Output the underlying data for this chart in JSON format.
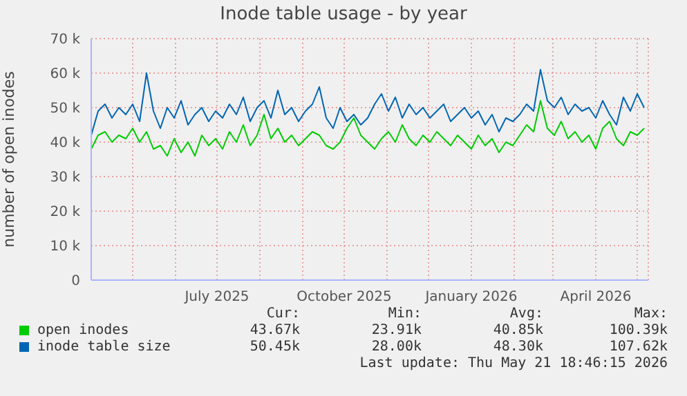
{
  "chart_data": {
    "type": "line",
    "title": "Inode table usage - by year",
    "ylabel": "number of open inodes",
    "x": [
      "2025-04-01",
      "2025-04-06",
      "2025-04-11",
      "2025-04-16",
      "2025-04-21",
      "2025-04-26",
      "2025-05-01",
      "2025-05-06",
      "2025-05-11",
      "2025-05-16",
      "2025-05-21",
      "2025-05-26",
      "2025-05-31",
      "2025-06-05",
      "2025-06-10",
      "2025-06-15",
      "2025-06-20",
      "2025-06-25",
      "2025-06-30",
      "2025-07-05",
      "2025-07-10",
      "2025-07-15",
      "2025-07-20",
      "2025-07-25",
      "2025-07-30",
      "2025-08-04",
      "2025-08-09",
      "2025-08-14",
      "2025-08-19",
      "2025-08-24",
      "2025-08-29",
      "2025-09-03",
      "2025-09-08",
      "2025-09-13",
      "2025-09-18",
      "2025-09-23",
      "2025-09-28",
      "2025-10-03",
      "2025-10-08",
      "2025-10-13",
      "2025-10-18",
      "2025-10-23",
      "2025-10-28",
      "2025-11-02",
      "2025-11-07",
      "2025-11-12",
      "2025-11-17",
      "2025-11-22",
      "2025-11-27",
      "2025-12-02",
      "2025-12-07",
      "2025-12-12",
      "2025-12-17",
      "2025-12-22",
      "2025-12-27",
      "2026-01-01",
      "2026-01-06",
      "2026-01-11",
      "2026-01-16",
      "2026-01-21",
      "2026-01-26",
      "2026-01-31",
      "2026-02-05",
      "2026-02-10",
      "2026-02-15",
      "2026-02-20",
      "2026-02-25",
      "2026-03-02",
      "2026-03-07",
      "2026-03-12",
      "2026-03-17",
      "2026-03-22",
      "2026-03-27",
      "2026-04-01",
      "2026-04-06",
      "2026-04-11",
      "2026-04-16",
      "2026-04-21",
      "2026-04-26",
      "2026-05-01",
      "2026-05-06"
    ],
    "series": [
      {
        "name": "open inodes",
        "color": "#00cc00",
        "values": [
          38000,
          42000,
          43000,
          40000,
          42000,
          41000,
          44000,
          40000,
          43000,
          38000,
          39000,
          36000,
          41000,
          37000,
          40000,
          36000,
          42000,
          39000,
          41000,
          38000,
          43000,
          40000,
          45000,
          39000,
          42000,
          48000,
          41000,
          44000,
          40000,
          42000,
          39000,
          41000,
          43000,
          42000,
          39000,
          38000,
          40000,
          44000,
          47000,
          42000,
          40000,
          38000,
          41000,
          43000,
          40000,
          45000,
          41000,
          39000,
          42000,
          40000,
          43000,
          41000,
          39000,
          42000,
          40000,
          38000,
          42000,
          39000,
          41000,
          37000,
          40000,
          39000,
          42000,
          45000,
          43000,
          52000,
          44000,
          42000,
          46000,
          41000,
          43000,
          40000,
          42000,
          38000,
          44000,
          46000,
          41000,
          39000,
          43000,
          42000,
          44000
        ]
      },
      {
        "name": "inode table size",
        "color": "#0066b3",
        "values": [
          42000,
          49000,
          51000,
          47000,
          50000,
          48000,
          51000,
          46000,
          60000,
          49000,
          44000,
          50000,
          47000,
          52000,
          45000,
          48000,
          50000,
          46000,
          49000,
          47000,
          51000,
          48000,
          53000,
          46000,
          50000,
          52000,
          47000,
          55000,
          48000,
          50000,
          46000,
          49000,
          51000,
          56000,
          47000,
          44000,
          50000,
          46000,
          48000,
          45000,
          47000,
          51000,
          54000,
          49000,
          53000,
          47000,
          51000,
          48000,
          50000,
          47000,
          49000,
          51000,
          46000,
          48000,
          50000,
          47000,
          49000,
          45000,
          48000,
          43000,
          47000,
          46000,
          48000,
          51000,
          49000,
          61000,
          52000,
          50000,
          53000,
          48000,
          51000,
          49000,
          50000,
          47000,
          52000,
          48000,
          45000,
          53000,
          49000,
          54000,
          50000
        ]
      }
    ],
    "xlim": [
      "2025-04-01",
      "2026-05-09"
    ],
    "xticks": [
      {
        "value": "2025-05-01",
        "label": null
      },
      {
        "value": "2025-06-01",
        "label": null
      },
      {
        "value": "2025-07-01",
        "label": "July 2025"
      },
      {
        "value": "2025-08-01",
        "label": null
      },
      {
        "value": "2025-09-01",
        "label": null
      },
      {
        "value": "2025-10-01",
        "label": "October 2025"
      },
      {
        "value": "2025-11-01",
        "label": null
      },
      {
        "value": "2025-12-01",
        "label": null
      },
      {
        "value": "2026-01-01",
        "label": "January 2026"
      },
      {
        "value": "2026-02-01",
        "label": null
      },
      {
        "value": "2026-03-01",
        "label": null
      },
      {
        "value": "2026-04-01",
        "label": "April 2026"
      },
      {
        "value": "2026-05-01",
        "label": null
      }
    ],
    "ylim": [
      0,
      70000
    ],
    "yticks": [
      0,
      {
        "value": 10000,
        "label": "10 k"
      },
      {
        "value": 20000,
        "label": "20 k"
      },
      {
        "value": 30000,
        "label": "30 k"
      },
      {
        "value": 40000,
        "label": "40 k"
      },
      {
        "value": 50000,
        "label": "50 k"
      },
      {
        "value": 60000,
        "label": "60 k"
      },
      {
        "value": 70000,
        "label": "70 k"
      }
    ],
    "grid": true,
    "legend": "bottom left",
    "annotations": [
      "Cur:",
      "Min:",
      "Avg:",
      "Max:",
      "43.67k",
      "23.91k",
      "40.85k",
      "100.39k",
      "50.45k",
      "28.00k",
      "48.30k",
      "107.62k",
      "Last update: Thu May 21 18:46:15 2026"
    ]
  }
}
